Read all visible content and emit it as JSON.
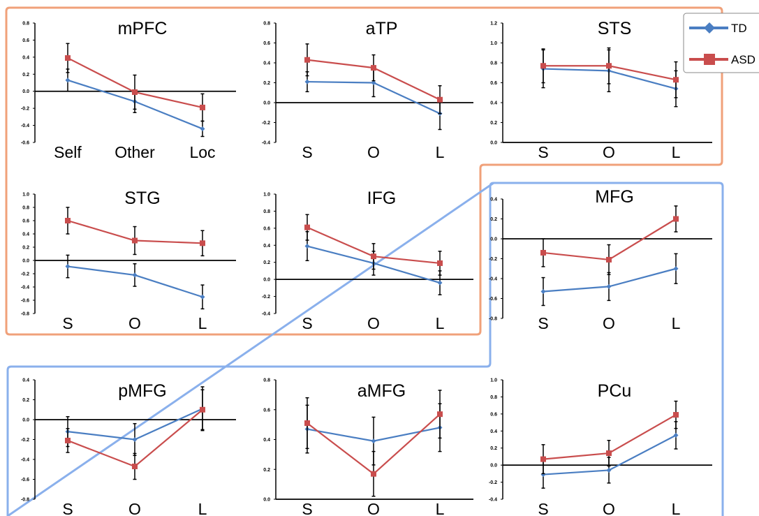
{
  "figure": {
    "groups": [
      {
        "name": "orange-group",
        "color": "#F0A17A"
      },
      {
        "name": "blue-group",
        "color": "#8AB0EC"
      }
    ]
  },
  "legend": {
    "entries": [
      {
        "label": "TD",
        "color": "#4A7EC2",
        "marker": "diamond"
      },
      {
        "label": "ASD",
        "color": "#C94D4D",
        "marker": "square"
      }
    ]
  },
  "chart_data": [
    {
      "type": "line",
      "title": "mPFC",
      "categories": [
        "Self",
        "Other",
        "Loc"
      ],
      "ylim": [
        -0.6,
        0.8
      ],
      "yticks": [
        "0.8",
        "0.6",
        "0.4",
        "0.2",
        "0.0",
        "-0.2",
        "-0.4",
        "-0.6"
      ],
      "series": [
        {
          "name": "TD",
          "values": [
            0.13,
            -0.12,
            -0.44
          ],
          "errors": [
            0.13,
            0.13,
            0.09
          ]
        },
        {
          "name": "ASD",
          "values": [
            0.39,
            -0.01,
            -0.19
          ],
          "errors": [
            0.17,
            0.2,
            0.16
          ]
        }
      ]
    },
    {
      "type": "line",
      "title": "aTP",
      "categories": [
        "S",
        "O",
        "L"
      ],
      "ylim": [
        -0.4,
        0.8
      ],
      "yticks": [
        "0.8",
        "0.6",
        "0.4",
        "0.2",
        "0.0",
        "-0.2",
        "-0.4"
      ],
      "series": [
        {
          "name": "TD",
          "values": [
            0.21,
            0.2,
            -0.11
          ],
          "errors": [
            0.1,
            0.14,
            0.16
          ]
        },
        {
          "name": "ASD",
          "values": [
            0.43,
            0.35,
            0.03
          ],
          "errors": [
            0.16,
            0.13,
            0.14
          ]
        }
      ]
    },
    {
      "type": "line",
      "title": "STS",
      "categories": [
        "S",
        "O",
        "L"
      ],
      "ylim": [
        0.0,
        1.2
      ],
      "yticks": [
        "1.2",
        "1.0",
        "0.8",
        "0.6",
        "0.4",
        "0.2",
        "0.0"
      ],
      "series": [
        {
          "name": "TD",
          "values": [
            0.74,
            0.72,
            0.54
          ],
          "errors": [
            0.19,
            0.21,
            0.18
          ]
        },
        {
          "name": "ASD",
          "values": [
            0.77,
            0.77,
            0.63
          ],
          "errors": [
            0.17,
            0.18,
            0.18
          ]
        }
      ]
    },
    {
      "type": "line",
      "title": "STG",
      "categories": [
        "S",
        "O",
        "L"
      ],
      "ylim": [
        -0.8,
        1.0
      ],
      "yticks": [
        "1.0",
        "0.8",
        "0.6",
        "0.4",
        "0.2",
        "0.0",
        "-0.2",
        "-0.4",
        "-0.6",
        "-0.8"
      ],
      "series": [
        {
          "name": "TD",
          "values": [
            -0.09,
            -0.22,
            -0.55
          ],
          "errors": [
            0.17,
            0.17,
            0.18
          ]
        },
        {
          "name": "ASD",
          "values": [
            0.6,
            0.3,
            0.26
          ],
          "errors": [
            0.2,
            0.21,
            0.19
          ]
        }
      ]
    },
    {
      "type": "line",
      "title": "IFG",
      "categories": [
        "S",
        "O",
        "L"
      ],
      "ylim": [
        -0.4,
        1.0
      ],
      "yticks": [
        "1.0",
        "0.8",
        "0.6",
        "0.4",
        "0.2",
        "0.0",
        "-0.2",
        "-0.4"
      ],
      "series": [
        {
          "name": "TD",
          "values": [
            0.39,
            0.19,
            -0.04
          ],
          "errors": [
            0.17,
            0.14,
            0.14
          ]
        },
        {
          "name": "ASD",
          "values": [
            0.61,
            0.27,
            0.19
          ],
          "errors": [
            0.15,
            0.15,
            0.14
          ]
        }
      ]
    },
    {
      "type": "line",
      "title": "MFG",
      "categories": [
        "S",
        "O",
        "L"
      ],
      "ylim": [
        -0.8,
        0.4
      ],
      "yticks": [
        "0.4",
        "0.2",
        "0.0",
        "-0.2",
        "-0.4",
        "-0.6",
        "-0.8"
      ],
      "series": [
        {
          "name": "TD",
          "values": [
            -0.53,
            -0.48,
            -0.3
          ],
          "errors": [
            0.14,
            0.14,
            0.15
          ]
        },
        {
          "name": "ASD",
          "values": [
            -0.14,
            -0.21,
            0.2
          ],
          "errors": [
            0.14,
            0.15,
            0.13
          ]
        }
      ]
    },
    {
      "type": "line",
      "title": "pMFG",
      "categories": [
        "S",
        "O",
        "L"
      ],
      "ylim": [
        -0.8,
        0.4
      ],
      "yticks": [
        "0.4",
        "0.2",
        "0.0",
        "-0.2",
        "-0.4",
        "-0.6",
        "-0.8"
      ],
      "series": [
        {
          "name": "TD",
          "values": [
            -0.12,
            -0.2,
            0.11
          ],
          "errors": [
            0.15,
            0.16,
            0.22
          ]
        },
        {
          "name": "ASD",
          "values": [
            -0.21,
            -0.47,
            0.1
          ],
          "errors": [
            0.12,
            0.13,
            0.2
          ]
        }
      ]
    },
    {
      "type": "line",
      "title": "aMFG",
      "categories": [
        "S",
        "O",
        "L"
      ],
      "ylim": [
        0.0,
        0.8
      ],
      "yticks": [
        "0.8",
        "0.6",
        "0.4",
        "0.2",
        "0.0"
      ],
      "series": [
        {
          "name": "TD",
          "values": [
            0.47,
            0.39,
            0.48
          ],
          "errors": [
            0.16,
            0.16,
            0.16
          ]
        },
        {
          "name": "ASD",
          "values": [
            0.51,
            0.17,
            0.57
          ],
          "errors": [
            0.17,
            0.15,
            0.16
          ]
        }
      ]
    },
    {
      "type": "line",
      "title": "PCu",
      "categories": [
        "S",
        "O",
        "L"
      ],
      "ylim": [
        -0.4,
        1.0
      ],
      "yticks": [
        "1.0",
        "0.8",
        "0.6",
        "0.4",
        "0.2",
        "0.0",
        "-0.2",
        "-0.4"
      ],
      "series": [
        {
          "name": "TD",
          "values": [
            -0.11,
            -0.06,
            0.35
          ],
          "errors": [
            0.16,
            0.15,
            0.16
          ]
        },
        {
          "name": "ASD",
          "values": [
            0.07,
            0.14,
            0.59
          ],
          "errors": [
            0.17,
            0.15,
            0.16
          ]
        }
      ]
    }
  ]
}
